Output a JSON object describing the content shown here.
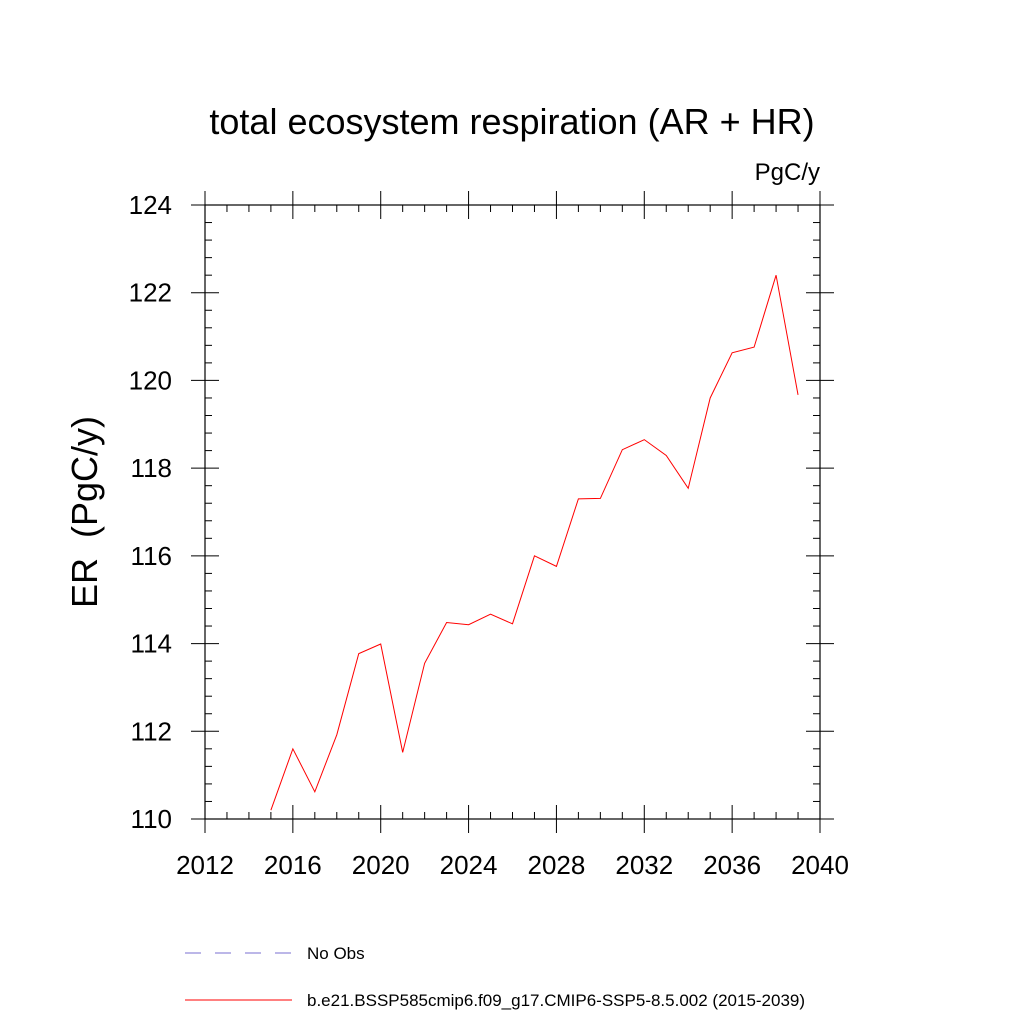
{
  "chart_data": {
    "type": "line",
    "title": "total ecosystem respiration (AR + HR)",
    "units_label": "PgC/y",
    "xlabel": "",
    "ylabel": "ER  (PgC/y)",
    "xlim": [
      2012,
      2040
    ],
    "ylim": [
      110,
      124
    ],
    "xticks": [
      2012,
      2016,
      2020,
      2024,
      2028,
      2032,
      2036,
      2040
    ],
    "yticks": [
      110,
      112,
      114,
      116,
      118,
      120,
      122,
      124
    ],
    "xtick_labels": [
      "2012",
      "2016",
      "2020",
      "2024",
      "2028",
      "2032",
      "2036",
      "2040"
    ],
    "ytick_labels": [
      "110",
      "112",
      "114",
      "116",
      "118",
      "120",
      "122",
      "124"
    ],
    "grid": false,
    "legend_position": "bottom",
    "series": [
      {
        "name": "b.e21.BSSP585cmip6.f09_g17.CMIP6-SSP5-8.5.002 (2015-2039)",
        "color": "#ff0000",
        "style": "solid",
        "x": [
          2015,
          2016,
          2017,
          2018,
          2019,
          2020,
          2021,
          2022,
          2023,
          2024,
          2025,
          2026,
          2027,
          2028,
          2029,
          2030,
          2031,
          2032,
          2033,
          2034,
          2035,
          2036,
          2037,
          2038,
          2039
        ],
        "values": [
          110.2,
          111.6,
          110.62,
          111.92,
          113.77,
          113.99,
          111.52,
          113.55,
          114.48,
          114.43,
          114.67,
          114.45,
          116.0,
          115.76,
          117.3,
          117.31,
          118.42,
          118.65,
          118.29,
          117.54,
          119.6,
          120.63,
          120.76,
          122.4,
          119.67
        ]
      }
    ],
    "legend": [
      {
        "label": "No Obs",
        "color": "#7a6fd0",
        "style": "dashed"
      },
      {
        "label": "b.e21.BSSP585cmip6.f09_g17.CMIP6-SSP5-8.5.002 (2015-2039)",
        "color": "#ff0000",
        "style": "solid"
      }
    ]
  }
}
